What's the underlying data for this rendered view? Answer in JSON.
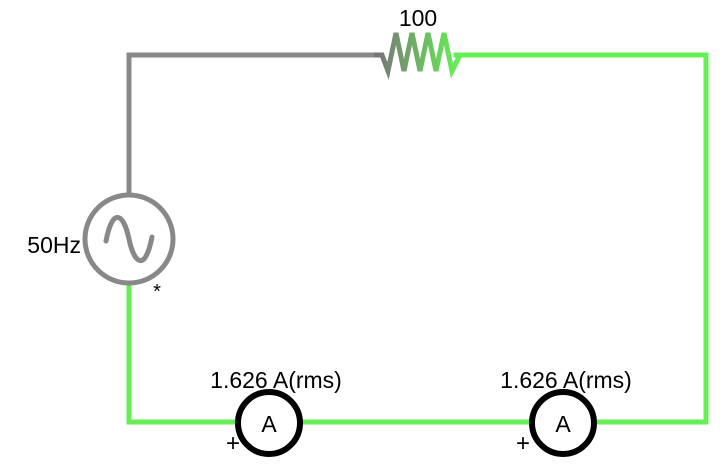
{
  "circuit": {
    "resistor_label": "100",
    "source_label": "50Hz",
    "source_marker": "*",
    "ammeter_symbol": "A",
    "ammeter_polarity": "+",
    "ammeters": [
      {
        "reading": "1.626 A(rms)"
      },
      {
        "reading": "1.626 A(rms)"
      }
    ],
    "colors": {
      "wire_inactive": "#888888",
      "wire_active": "#66ee55",
      "meter_stroke": "#000000",
      "background": "#ffffff"
    },
    "icons": {
      "source": "ac-sine-source-icon",
      "resistor": "zigzag-resistor-icon",
      "ammeter": "ammeter-icon"
    }
  }
}
